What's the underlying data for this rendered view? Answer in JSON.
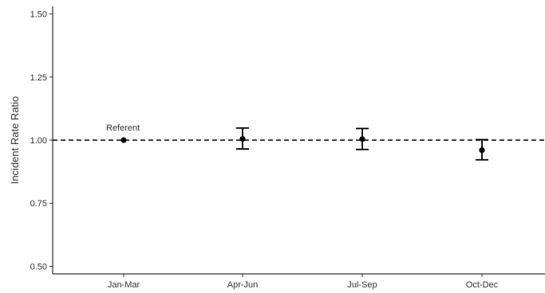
{
  "chart_data": {
    "type": "scatter",
    "title": "",
    "xlabel": "",
    "ylabel": "Incident Rate Ratio",
    "categories": [
      "Jan-Mar",
      "Apr-Jun",
      "Jul-Sep",
      "Oct-Dec"
    ],
    "points": [
      {
        "category": "Jan-Mar",
        "value": 1.0,
        "lower": null,
        "upper": null,
        "label": "Referent"
      },
      {
        "category": "Apr-Jun",
        "value": 1.005,
        "lower": 0.965,
        "upper": 1.048,
        "label": ""
      },
      {
        "category": "Jul-Sep",
        "value": 1.004,
        "lower": 0.963,
        "upper": 1.046,
        "label": ""
      },
      {
        "category": "Oct-Dec",
        "value": 0.96,
        "lower": 0.922,
        "upper": 1.002,
        "label": ""
      }
    ],
    "reference_line": 1.0,
    "ylim": [
      0.47,
      1.53
    ],
    "yticks": [
      0.5,
      0.75,
      1.0,
      1.25,
      1.5
    ],
    "ytick_labels": [
      "0.50",
      "0.75",
      "1.00",
      "1.25",
      "1.50"
    ],
    "grid": false,
    "legend": "none"
  }
}
